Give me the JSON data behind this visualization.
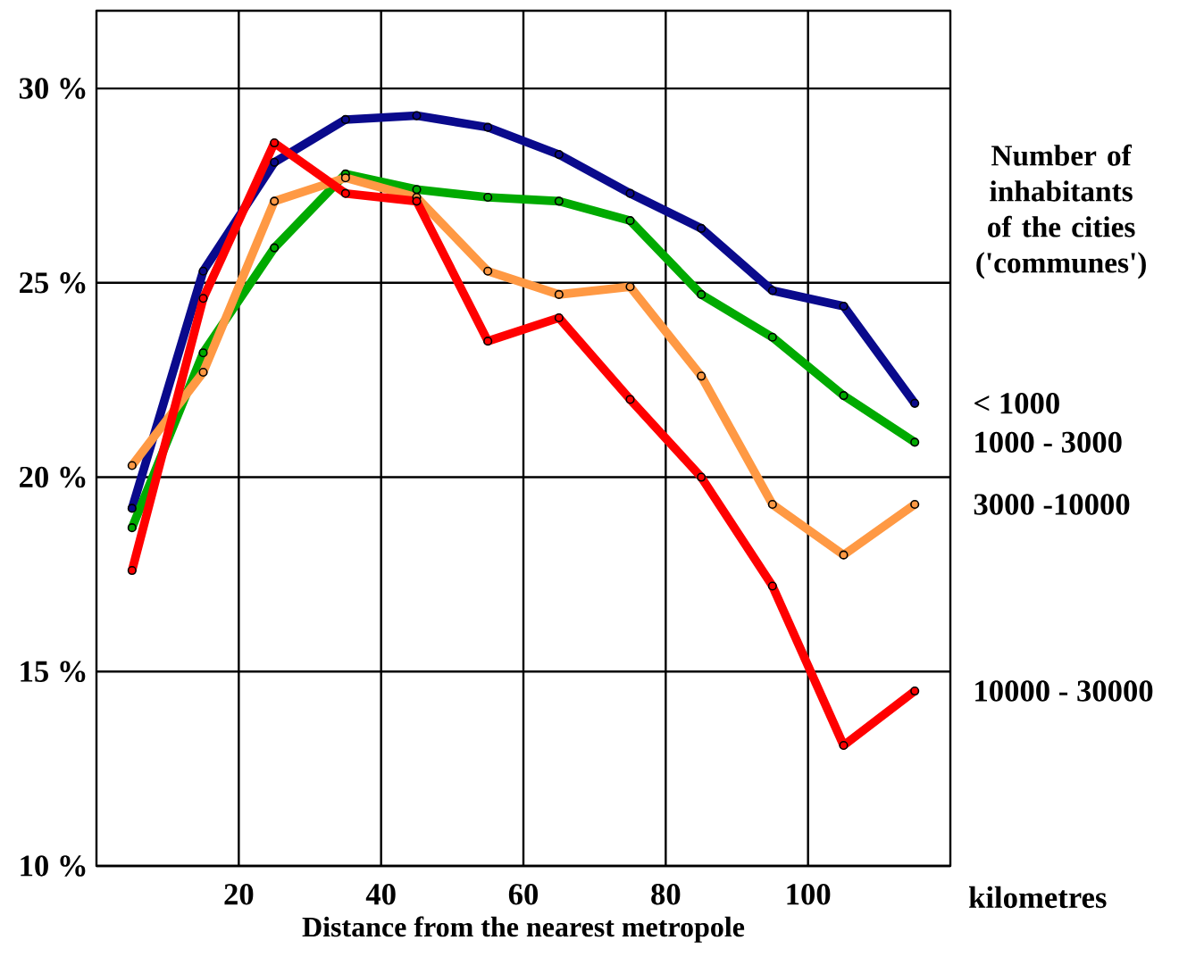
{
  "chart_data": {
    "type": "line",
    "xlabel": "Distance from the nearest metropole",
    "legend_title": "Number of inhabitants of the cities ('communes')",
    "annotations": [
      "kilometres"
    ],
    "x": [
      5,
      15,
      25,
      35,
      45,
      55,
      65,
      75,
      85,
      95,
      105,
      115
    ],
    "series": [
      {
        "name": "< 1000",
        "color": "#0a0a8c",
        "values": [
          19.2,
          25.3,
          28.1,
          29.2,
          29.3,
          29.0,
          28.3,
          27.3,
          26.4,
          24.8,
          24.4,
          21.9
        ]
      },
      {
        "name": "1000 - 3000",
        "color": "#00aa00",
        "values": [
          18.7,
          23.2,
          25.9,
          27.8,
          27.4,
          27.2,
          27.1,
          26.6,
          24.7,
          23.6,
          22.1,
          20.9
        ]
      },
      {
        "name": "3000 -10000",
        "color": "#ff9944",
        "values": [
          20.3,
          22.7,
          27.1,
          27.7,
          27.2,
          25.3,
          24.7,
          24.9,
          22.6,
          19.3,
          18.0,
          19.3
        ]
      },
      {
        "name": "10000 - 30000",
        "color": "#ff0000",
        "values": [
          17.6,
          24.6,
          28.6,
          27.3,
          27.1,
          23.5,
          24.1,
          22.0,
          20.0,
          17.2,
          13.1,
          14.5
        ]
      }
    ],
    "xlim": [
      0,
      120
    ],
    "xticks": [
      20,
      40,
      60,
      80,
      100
    ],
    "ylim": [
      10,
      32
    ],
    "yticks": [
      {
        "value": 10,
        "label": "10 %"
      },
      {
        "value": 15,
        "label": "15 %"
      },
      {
        "value": 20,
        "label": "20 %"
      },
      {
        "value": 25,
        "label": "25 %"
      },
      {
        "value": 30,
        "label": "30 %"
      }
    ],
    "grid": true,
    "marker": "circle",
    "line_style": "solid"
  }
}
